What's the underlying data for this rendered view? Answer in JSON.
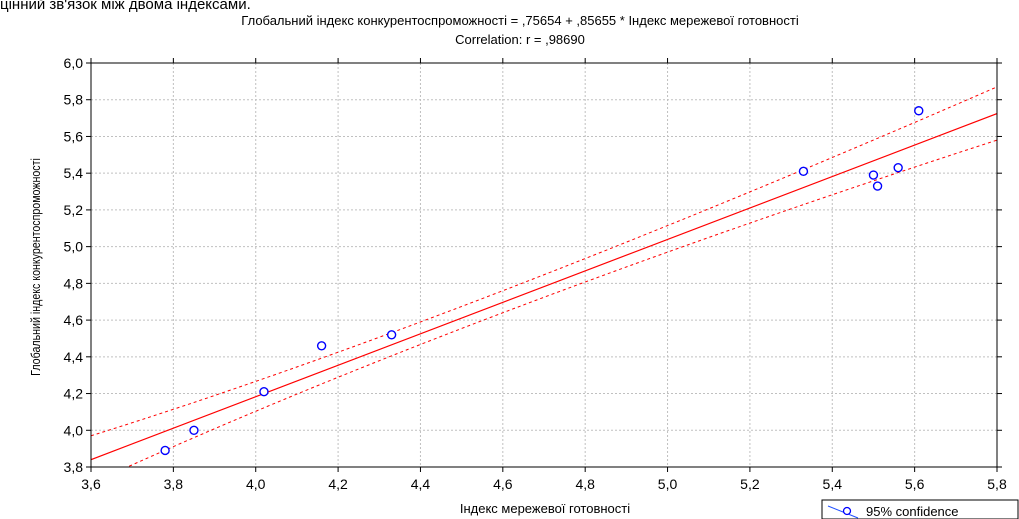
{
  "caption_text": "цінний зв'язок між двома індексами.",
  "chart_data": {
    "type": "scatter",
    "title": "Глобальний індекс конкурентоспроможності = ,75654 + ,85655 * Індекс мережевої готовності",
    "subtitle": "Correlation: r = ,98690",
    "xlabel": "Індекс мережевої готовності",
    "ylabel": "Глобальний індекс конкурентоспроможності",
    "xlim": [
      3.6,
      5.8
    ],
    "ylim": [
      3.8,
      6.0
    ],
    "x_ticks": [
      "3,6",
      "3,8",
      "4,0",
      "4,2",
      "4,4",
      "4,6",
      "4,8",
      "5,0",
      "5,2",
      "5,4",
      "5,6",
      "5,8"
    ],
    "y_ticks": [
      "3,8",
      "4,0",
      "4,2",
      "4,4",
      "4,6",
      "4,8",
      "5,0",
      "5,2",
      "5,4",
      "5,6",
      "5,8",
      "6,0"
    ],
    "grid": true,
    "regression": {
      "intercept": 0.75654,
      "slope": 0.85655
    },
    "confidence_band": [
      {
        "x": 3.6,
        "lower": 3.71,
        "upper": 3.97
      },
      {
        "x": 4.6,
        "lower": 4.64,
        "upper": 4.76
      },
      {
        "x": 5.8,
        "lower": 5.58,
        "upper": 5.87
      }
    ],
    "points": [
      {
        "x": 3.78,
        "y": 3.89
      },
      {
        "x": 3.85,
        "y": 4.0
      },
      {
        "x": 4.02,
        "y": 4.21
      },
      {
        "x": 4.16,
        "y": 4.46
      },
      {
        "x": 4.33,
        "y": 4.52
      },
      {
        "x": 5.33,
        "y": 5.41
      },
      {
        "x": 5.5,
        "y": 5.39
      },
      {
        "x": 5.51,
        "y": 5.33
      },
      {
        "x": 5.56,
        "y": 5.43
      },
      {
        "x": 5.61,
        "y": 5.74
      }
    ],
    "legend": {
      "label": "95% confidence",
      "placement": "bottom-right"
    },
    "colors": {
      "line": "#ff0000",
      "points": "#0000ff",
      "frame": "#000000",
      "grid": "#c0c0c0"
    }
  }
}
